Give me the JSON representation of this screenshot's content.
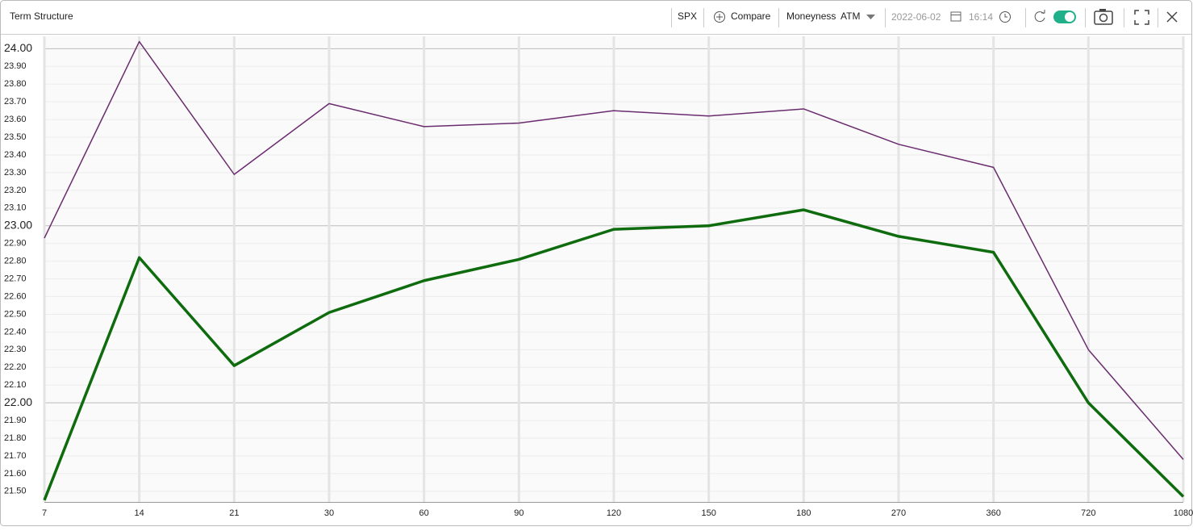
{
  "toolbar": {
    "title": "Term Structure",
    "symbol": "SPX",
    "compare": "Compare",
    "moneyness": "Moneyness",
    "moneyness_value": "ATM",
    "date": "2022-06-02",
    "time": "16:14"
  },
  "chart_data": {
    "type": "line",
    "categories": [
      "7",
      "14",
      "21",
      "30",
      "60",
      "90",
      "120",
      "150",
      "180",
      "270",
      "360",
      "720",
      "1080"
    ],
    "series": [
      {
        "color": "#6a2c6e",
        "width": 1.5,
        "values": [
          22.93,
          24.04,
          23.29,
          23.69,
          23.56,
          23.58,
          23.65,
          23.62,
          23.66,
          23.46,
          23.33,
          22.3,
          21.68
        ]
      },
      {
        "color": "#0e6b0e",
        "width": 3.5,
        "values": [
          21.45,
          22.82,
          22.21,
          22.51,
          22.69,
          22.81,
          22.98,
          23.0,
          23.09,
          22.94,
          22.85,
          22.0,
          21.47
        ]
      }
    ],
    "ylim": [
      21.44,
      24.07
    ],
    "yticks": [
      {
        "value": 21.5,
        "label": "21.50"
      },
      {
        "value": 21.6,
        "label": "21.60"
      },
      {
        "value": 21.7,
        "label": "21.70"
      },
      {
        "value": 21.8,
        "label": "21.80"
      },
      {
        "value": 21.9,
        "label": "21.90"
      },
      {
        "value": 22.0,
        "label": "22.00"
      },
      {
        "value": 22.1,
        "label": "22.10"
      },
      {
        "value": 22.2,
        "label": "22.20"
      },
      {
        "value": 22.3,
        "label": "22.30"
      },
      {
        "value": 22.4,
        "label": "22.40"
      },
      {
        "value": 22.5,
        "label": "22.50"
      },
      {
        "value": 22.6,
        "label": "22.60"
      },
      {
        "value": 22.7,
        "label": "22.70"
      },
      {
        "value": 22.8,
        "label": "22.80"
      },
      {
        "value": 22.9,
        "label": "22.90"
      },
      {
        "value": 23.0,
        "label": "23.00"
      },
      {
        "value": 23.1,
        "label": "23.10"
      },
      {
        "value": 23.2,
        "label": "23.20"
      },
      {
        "value": 23.3,
        "label": "23.30"
      },
      {
        "value": 23.4,
        "label": "23.40"
      },
      {
        "value": 23.5,
        "label": "23.50"
      },
      {
        "value": 23.6,
        "label": "23.60"
      },
      {
        "value": 23.7,
        "label": "23.70"
      },
      {
        "value": 23.8,
        "label": "23.80"
      },
      {
        "value": 23.9,
        "label": "23.90"
      },
      {
        "value": 24.0,
        "label": "24.00"
      }
    ],
    "grid": true
  }
}
